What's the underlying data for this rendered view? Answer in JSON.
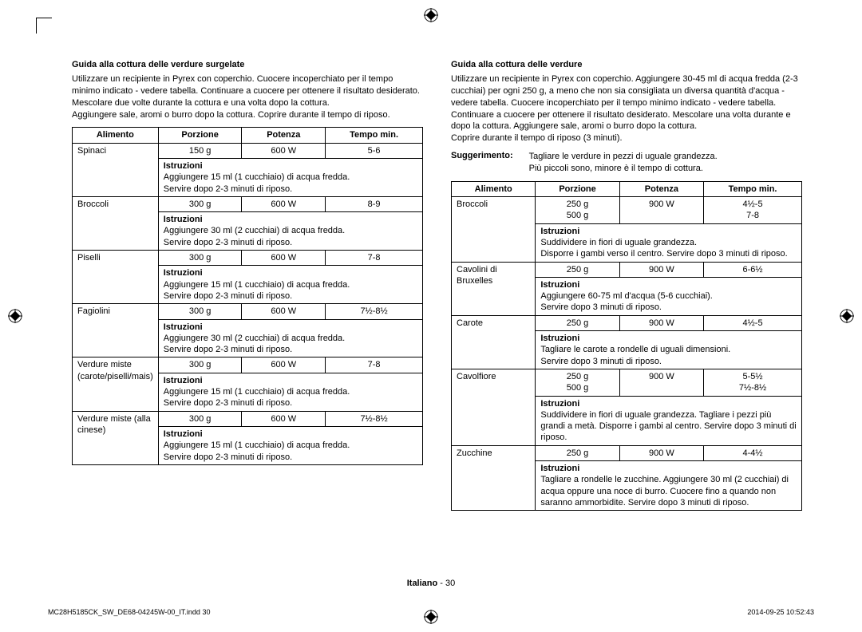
{
  "left": {
    "title": "Guida alla cottura delle verdure surgelate",
    "intro": "Utilizzare un recipiente in Pyrex con coperchio. Cuocere incoperchiato per il tempo minimo indicato - vedere tabella. Continuare a cuocere per ottenere il risultato desiderato. Mescolare due volte durante la cottura e una volta dopo la cottura.\nAggiungere sale, aromi o burro dopo la cottura. Coprire durante il tempo di riposo.",
    "headers": {
      "c1": "Alimento",
      "c2": "Porzione",
      "c3": "Potenza",
      "c4": "Tempo min."
    },
    "rows": [
      {
        "food": "Spinaci",
        "portion": "150 g",
        "power": "600 W",
        "time": "5-6",
        "instr": "Aggiungere 15 ml (1 cucchiaio) di acqua fredda.\nServire dopo 2-3 minuti di riposo."
      },
      {
        "food": "Broccoli",
        "portion": "300 g",
        "power": "600 W",
        "time": "8-9",
        "instr": "Aggiungere 30 ml (2 cucchiai) di acqua fredda.\nServire dopo 2-3 minuti di riposo."
      },
      {
        "food": "Piselli",
        "portion": "300 g",
        "power": "600 W",
        "time": "7-8",
        "instr": "Aggiungere 15 ml (1 cucchiaio) di acqua fredda.\nServire dopo 2-3 minuti di riposo."
      },
      {
        "food": "Fagiolini",
        "portion": "300 g",
        "power": "600 W",
        "time": "7½-8½",
        "instr": "Aggiungere 30 ml (2 cucchiai) di acqua fredda.\nServire dopo 2-3 minuti di riposo."
      },
      {
        "food": "Verdure miste (carote/piselli/mais)",
        "portion": "300 g",
        "power": "600 W",
        "time": "7-8",
        "instr": "Aggiungere 15 ml (1 cucchiaio) di acqua fredda.\nServire dopo 2-3 minuti di riposo."
      },
      {
        "food": "Verdure miste (alla cinese)",
        "portion": "300 g",
        "power": "600 W",
        "time": "7½-8½",
        "instr": "Aggiungere 15 ml (1 cucchiaio) di acqua fredda.\nServire dopo 2-3 minuti di riposo."
      }
    ],
    "instr_label": "Istruzioni"
  },
  "right": {
    "title": "Guida alla cottura delle verdure",
    "intro": "Utilizzare un recipiente in Pyrex con coperchio. Aggiungere 30-45 ml di acqua fredda (2-3 cucchiai) per ogni 250 g, a meno che non sia consigliata un diversa quantità d'acqua - vedere tabella. Cuocere incoperchiato per il tempo minimo indicato - vedere tabella. Continuare a cuocere per ottenere il risultato desiderato. Mescolare una volta durante e dopo la cottura. Aggiungere sale, aromi o burro dopo la cottura.\nCoprire durante il tempo di riposo (3 minuti).",
    "tip_label": "Suggerimento:",
    "tip_text": "Tagliare le verdure in pezzi di uguale grandezza.\nPiù piccoli sono, minore è il tempo di cottura.",
    "headers": {
      "c1": "Alimento",
      "c2": "Porzione",
      "c3": "Potenza",
      "c4": "Tempo min."
    },
    "rows": [
      {
        "food": "Broccoli",
        "portion": "250 g\n500 g",
        "power": "900 W",
        "time": "4½-5\n7-8",
        "instr": "Suddividere in fiori di uguale grandezza.\nDisporre i gambi verso il centro. Servire dopo 3 minuti di riposo."
      },
      {
        "food": "Cavolini di Bruxelles",
        "portion": "250 g",
        "power": "900 W",
        "time": "6-6½",
        "instr": "Aggiungere 60-75 ml d'acqua (5-6 cucchiai).\nServire dopo 3 minuti di riposo."
      },
      {
        "food": "Carote",
        "portion": "250 g",
        "power": "900 W",
        "time": "4½-5",
        "instr": "Tagliare le carote a rondelle di uguali dimensioni.\nServire dopo 3 minuti di riposo."
      },
      {
        "food": "Cavolfiore",
        "portion": "250 g\n500 g",
        "power": "900 W",
        "time": "5-5½\n7½-8½",
        "instr": "Suddividere in fiori di uguale grandezza. Tagliare i pezzi più grandi a metà. Disporre i gambi al centro. Servire dopo 3 minuti di riposo."
      },
      {
        "food": "Zucchine",
        "portion": "250 g",
        "power": "900 W",
        "time": "4-4½",
        "instr": "Tagliare a rondelle le zucchine. Aggiungere 30 ml (2 cucchiai) di acqua oppure una noce di burro. Cuocere fino a quando non saranno ammorbidite. Servire dopo 3 minuti di riposo."
      }
    ],
    "instr_label": "Istruzioni"
  },
  "footer": {
    "lang": "Italiano",
    "sep": " - ",
    "page": "30"
  },
  "meta": {
    "left": "MC28H5185CK_SW_DE68-04245W-00_IT.indd   30",
    "right": "2014-09-25   10:52:43"
  },
  "colwidths": {
    "c1": "24%",
    "c2": "24%",
    "c3": "24%",
    "c4": "28%"
  }
}
